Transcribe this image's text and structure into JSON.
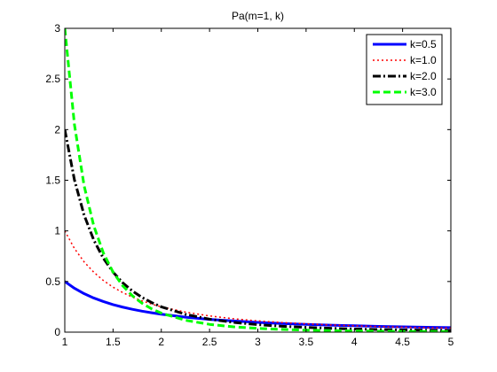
{
  "chart_data": {
    "type": "line",
    "title": "Pa(m=1, k)",
    "xlabel": "",
    "ylabel": "",
    "xlim": [
      1,
      5
    ],
    "ylim": [
      0,
      3
    ],
    "xticks": [
      "1",
      "1.5",
      "2",
      "2.5",
      "3",
      "3.5",
      "4",
      "4.5",
      "5"
    ],
    "yticks": [
      "0",
      "0.5",
      "1",
      "1.5",
      "2",
      "2.5",
      "3"
    ],
    "grid": false,
    "legend_position": "top-right",
    "x": [
      1.0,
      1.1,
      1.2,
      1.3,
      1.4,
      1.5,
      1.6,
      1.7,
      1.8,
      1.9,
      2.0,
      2.25,
      2.5,
      2.75,
      3.0,
      3.25,
      3.5,
      3.75,
      4.0,
      4.25,
      4.5,
      4.75,
      5.0
    ],
    "series": [
      {
        "name": "k=0.5",
        "color": "#0000ff",
        "style": "solid",
        "values": [
          0.5,
          0.433,
          0.38,
          0.337,
          0.302,
          0.272,
          0.247,
          0.226,
          0.207,
          0.191,
          0.177,
          0.148,
          0.126,
          0.11,
          0.096,
          0.085,
          0.076,
          0.069,
          0.063,
          0.057,
          0.052,
          0.048,
          0.045
        ]
      },
      {
        "name": "k=1.0",
        "color": "#ff0000",
        "style": "dotted",
        "values": [
          1.0,
          0.826,
          0.694,
          0.592,
          0.51,
          0.444,
          0.391,
          0.346,
          0.309,
          0.277,
          0.25,
          0.198,
          0.16,
          0.132,
          0.111,
          0.095,
          0.082,
          0.071,
          0.063,
          0.055,
          0.049,
          0.044,
          0.04
        ]
      },
      {
        "name": "k=2.0",
        "color": "#000000",
        "style": "dashdot",
        "values": [
          2.0,
          1.503,
          1.157,
          0.91,
          0.729,
          0.593,
          0.488,
          0.407,
          0.343,
          0.292,
          0.25,
          0.176,
          0.128,
          0.096,
          0.074,
          0.058,
          0.047,
          0.038,
          0.031,
          0.026,
          0.022,
          0.019,
          0.016
        ]
      },
      {
        "name": "k=3.0",
        "color": "#00ff00",
        "style": "dashed",
        "values": [
          3.0,
          2.049,
          1.447,
          1.05,
          0.781,
          0.593,
          0.458,
          0.359,
          0.286,
          0.23,
          0.188,
          0.117,
          0.077,
          0.052,
          0.037,
          0.027,
          0.02,
          0.015,
          0.012,
          0.009,
          0.007,
          0.006,
          0.005
        ]
      }
    ]
  }
}
